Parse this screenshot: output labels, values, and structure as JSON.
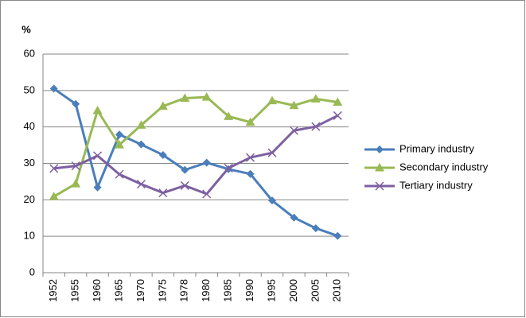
{
  "chart_data": {
    "type": "line",
    "y_label": "%",
    "categories": [
      "1952",
      "1955",
      "1960",
      "1965",
      "1970",
      "1975",
      "1978",
      "1980",
      "1985",
      "1990",
      "1995",
      "2000",
      "2005",
      "2010"
    ],
    "series": [
      {
        "name": "Primary industry",
        "color": "#4a7ebb",
        "marker": "diamond",
        "values": [
          50.5,
          46.3,
          23.4,
          37.9,
          35.2,
          32.3,
          28.2,
          30.2,
          28.4,
          27.1,
          19.8,
          15.1,
          12.2,
          10.1
        ]
      },
      {
        "name": "Secondary industry",
        "color": "#98b954",
        "marker": "triangle",
        "values": [
          20.9,
          24.4,
          44.5,
          35.1,
          40.5,
          45.7,
          47.9,
          48.2,
          42.9,
          41.3,
          47.2,
          45.9,
          47.7,
          46.8
        ]
      },
      {
        "name": "Tertiary industry",
        "color": "#7d60a0",
        "marker": "x",
        "values": [
          28.6,
          29.3,
          32.1,
          27.0,
          24.3,
          21.9,
          23.9,
          21.6,
          28.7,
          31.6,
          32.9,
          39.0,
          40.1,
          43.1
        ]
      }
    ],
    "ylim": [
      0,
      60
    ],
    "yticks": [
      0,
      10,
      20,
      30,
      40,
      50,
      60
    ],
    "grid": true,
    "legend": "right"
  }
}
